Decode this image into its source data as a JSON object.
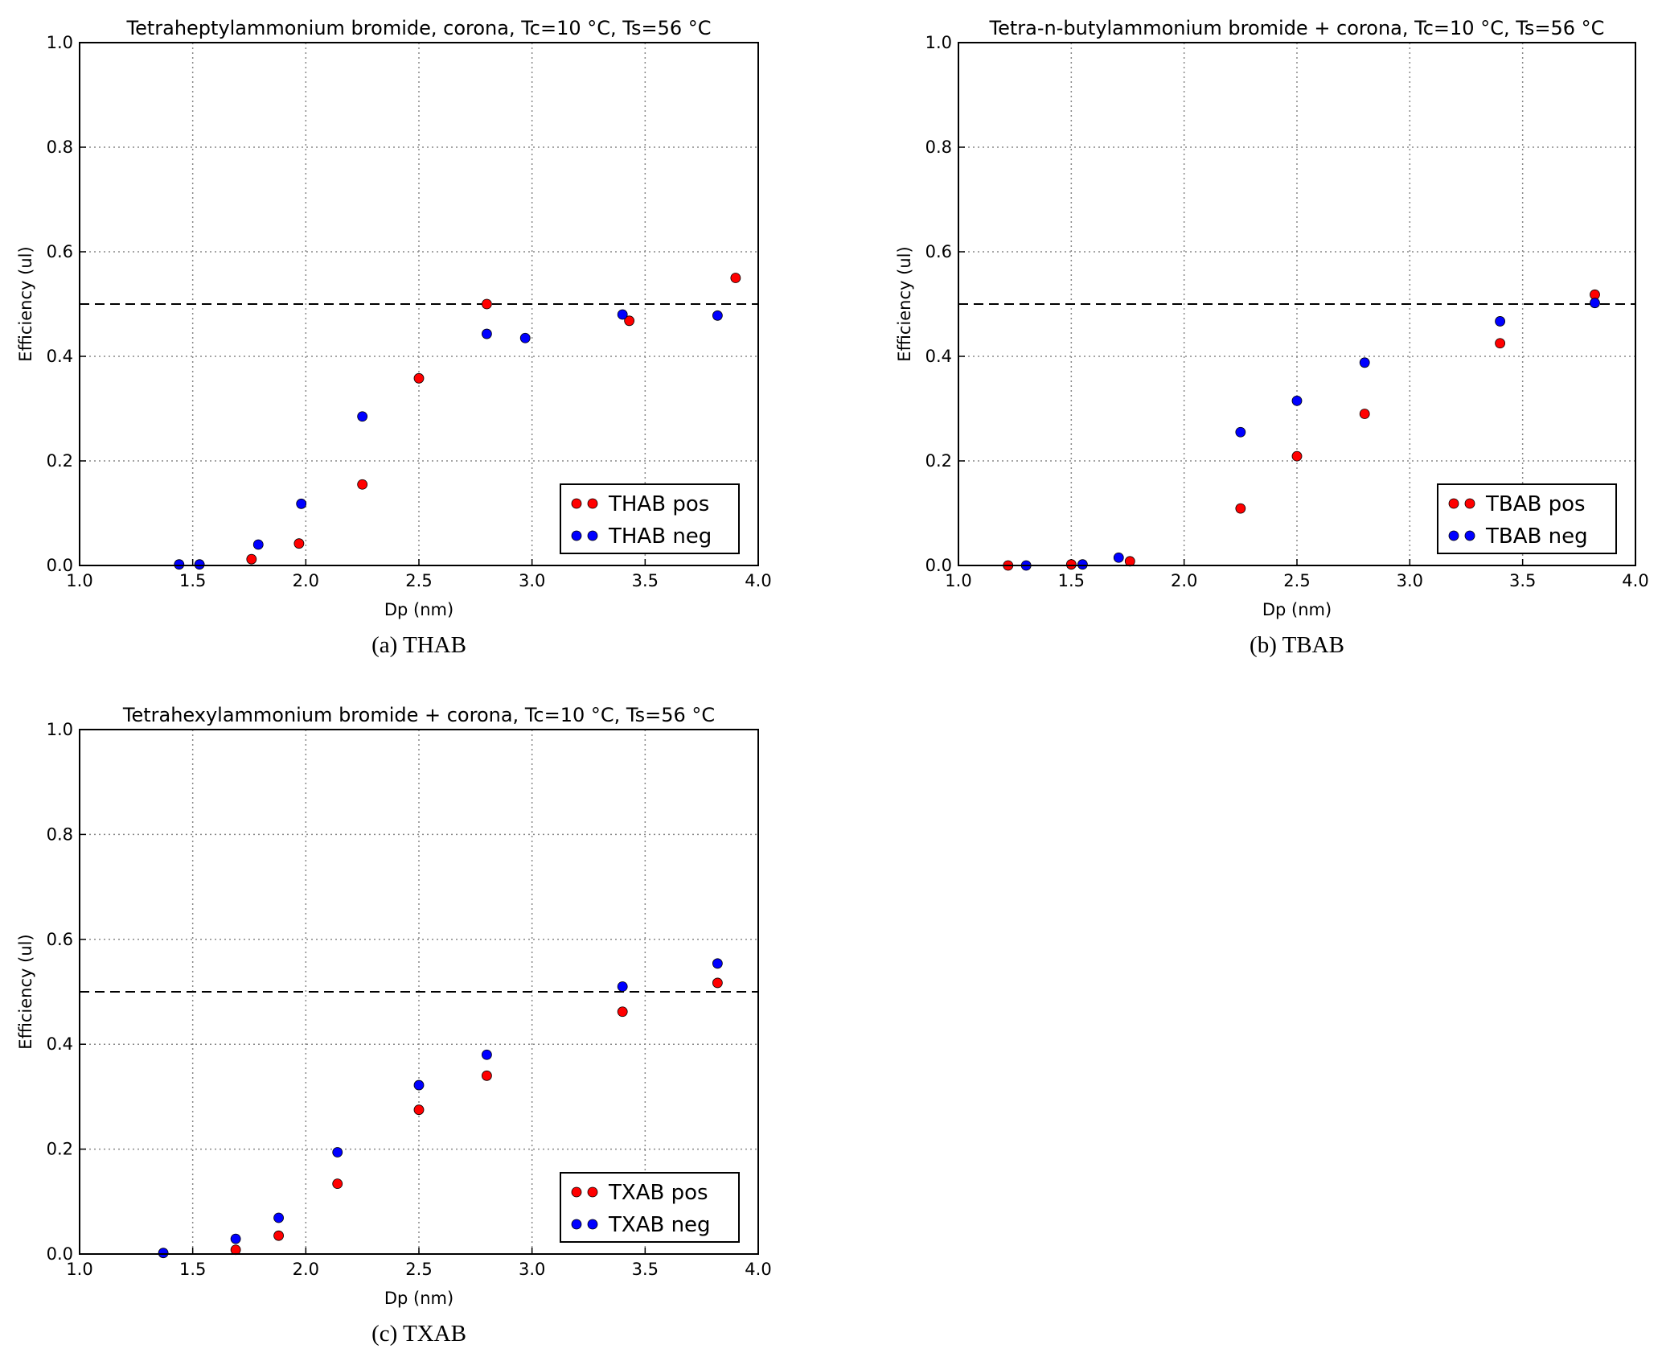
{
  "colors": {
    "pos": "#ff0000",
    "neg": "#0000ff",
    "axis": "#000000",
    "grid": "#888888"
  },
  "chart_data": [
    {
      "type": "scatter",
      "title": "Tetraheptylammonium bromide, corona, Tc=10 °C, Ts=56 °C",
      "caption": "(a) THAB",
      "xlabel": "Dp (nm)",
      "ylabel": "Efficiency (ul)",
      "xlim": [
        1.0,
        4.0
      ],
      "ylim": [
        0.0,
        1.0
      ],
      "xticks": [
        "1.0",
        "1.5",
        "2.0",
        "2.5",
        "3.0",
        "3.5",
        "4.0"
      ],
      "yticks": [
        "0.0",
        "0.2",
        "0.4",
        "0.6",
        "0.8",
        "1.0"
      ],
      "grid": true,
      "reference_line": 0.5,
      "legend": "lower-right",
      "series": [
        {
          "name": "THAB pos",
          "color": "pos",
          "points": [
            [
              1.76,
              0.012
            ],
            [
              1.97,
              0.042
            ],
            [
              2.25,
              0.155
            ],
            [
              2.5,
              0.358
            ],
            [
              2.8,
              0.5
            ],
            [
              3.43,
              0.468
            ],
            [
              3.9,
              0.55
            ]
          ]
        },
        {
          "name": "THAB neg",
          "color": "neg",
          "points": [
            [
              1.44,
              0.002
            ],
            [
              1.53,
              0.002
            ],
            [
              1.79,
              0.04
            ],
            [
              1.98,
              0.118
            ],
            [
              2.25,
              0.285
            ],
            [
              2.8,
              0.443
            ],
            [
              2.97,
              0.435
            ],
            [
              3.4,
              0.48
            ],
            [
              3.82,
              0.478
            ]
          ]
        }
      ]
    },
    {
      "type": "scatter",
      "title": "Tetra-n-butylammonium bromide + corona, Tc=10 °C, Ts=56 °C",
      "caption": "(b) TBAB",
      "xlabel": "Dp (nm)",
      "ylabel": "Efficiency (ul)",
      "xlim": [
        1.0,
        4.0
      ],
      "ylim": [
        0.0,
        1.0
      ],
      "xticks": [
        "1.0",
        "1.5",
        "2.0",
        "2.5",
        "3.0",
        "3.5",
        "4.0"
      ],
      "yticks": [
        "0.0",
        "0.2",
        "0.4",
        "0.6",
        "0.8",
        "1.0"
      ],
      "grid": true,
      "reference_line": 0.5,
      "legend": "lower-right",
      "series": [
        {
          "name": "TBAB pos",
          "color": "pos",
          "points": [
            [
              1.22,
              0.0
            ],
            [
              1.5,
              0.002
            ],
            [
              1.76,
              0.008
            ],
            [
              2.25,
              0.109
            ],
            [
              2.5,
              0.209
            ],
            [
              2.8,
              0.29
            ],
            [
              3.4,
              0.425
            ],
            [
              3.82,
              0.518
            ]
          ]
        },
        {
          "name": "TBAB neg",
          "color": "neg",
          "points": [
            [
              1.3,
              0.0
            ],
            [
              1.55,
              0.002
            ],
            [
              1.71,
              0.015
            ],
            [
              2.25,
              0.255
            ],
            [
              2.5,
              0.315
            ],
            [
              2.8,
              0.388
            ],
            [
              3.4,
              0.467
            ],
            [
              3.82,
              0.502
            ]
          ]
        }
      ]
    },
    {
      "type": "scatter",
      "title": "Tetrahexylammonium bromide + corona, Tc=10 °C, Ts=56 °C",
      "caption": "(c) TXAB",
      "xlabel": "Dp (nm)",
      "ylabel": "Efficiency (ul)",
      "xlim": [
        1.0,
        4.0
      ],
      "ylim": [
        0.0,
        1.0
      ],
      "xticks": [
        "1.0",
        "1.5",
        "2.0",
        "2.5",
        "3.0",
        "3.5",
        "4.0"
      ],
      "yticks": [
        "0.0",
        "0.2",
        "0.4",
        "0.6",
        "0.8",
        "1.0"
      ],
      "grid": true,
      "reference_line": 0.5,
      "legend": "lower-right",
      "series": [
        {
          "name": "TXAB pos",
          "color": "pos",
          "points": [
            [
              1.69,
              0.008
            ],
            [
              1.88,
              0.035
            ],
            [
              2.14,
              0.134
            ],
            [
              2.5,
              0.275
            ],
            [
              2.8,
              0.34
            ],
            [
              3.4,
              0.462
            ],
            [
              3.82,
              0.517
            ]
          ]
        },
        {
          "name": "TXAB neg",
          "color": "neg",
          "points": [
            [
              1.37,
              0.002
            ],
            [
              1.69,
              0.029
            ],
            [
              1.88,
              0.069
            ],
            [
              2.14,
              0.194
            ],
            [
              2.5,
              0.322
            ],
            [
              2.8,
              0.38
            ],
            [
              3.4,
              0.51
            ],
            [
              3.82,
              0.554
            ]
          ]
        }
      ]
    }
  ]
}
